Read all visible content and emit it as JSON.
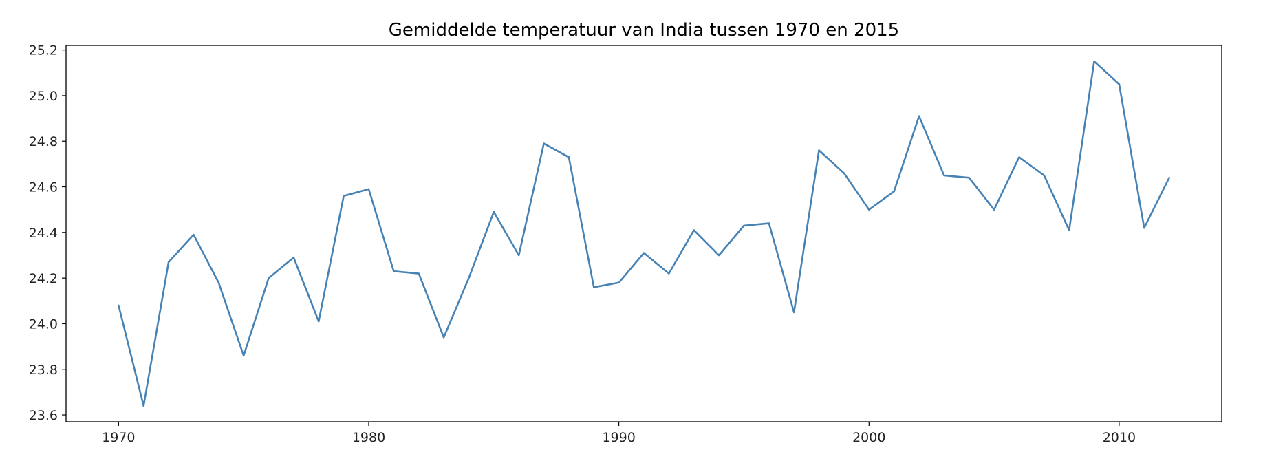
{
  "chart_data": {
    "type": "line",
    "title": "Gemiddelde temperatuur van India tussen 1970 en 2015",
    "xlabel": "",
    "ylabel": "",
    "xlim": [
      1967.9,
      2014.1
    ],
    "ylim": [
      23.57,
      25.22
    ],
    "x_ticks": [
      1970,
      1980,
      1990,
      2000,
      2010
    ],
    "x_tick_labels": [
      "1970",
      "1980",
      "1990",
      "2000",
      "2010"
    ],
    "y_ticks": [
      23.6,
      23.8,
      24.0,
      24.2,
      24.4,
      24.6,
      24.8,
      25.0,
      25.2
    ],
    "y_tick_labels": [
      "23.6",
      "23.8",
      "24.0",
      "24.2",
      "24.4",
      "24.6",
      "24.8",
      "25.0",
      "25.2"
    ],
    "grid": false,
    "legend": "none",
    "series": [
      {
        "color": "#4682b4",
        "x": [
          1970,
          1971,
          1972,
          1973,
          1974,
          1975,
          1976,
          1977,
          1978,
          1979,
          1980,
          1981,
          1982,
          1983,
          1984,
          1985,
          1986,
          1987,
          1988,
          1989,
          1990,
          1991,
          1992,
          1993,
          1994,
          1995,
          1996,
          1997,
          1998,
          1999,
          2000,
          2001,
          2002,
          2003,
          2004,
          2005,
          2006,
          2007,
          2008,
          2009,
          2010,
          2011,
          2012
        ],
        "values": [
          24.08,
          23.64,
          24.27,
          24.39,
          24.18,
          23.86,
          24.2,
          24.29,
          24.01,
          24.56,
          24.59,
          24.23,
          24.22,
          23.94,
          24.2,
          24.49,
          24.3,
          24.79,
          24.73,
          24.16,
          24.18,
          24.31,
          24.22,
          24.41,
          24.3,
          24.43,
          24.44,
          24.05,
          24.76,
          24.66,
          24.5,
          24.58,
          24.91,
          24.65,
          24.64,
          24.5,
          24.73,
          24.65,
          24.41,
          25.15,
          25.05,
          24.42,
          24.64
        ]
      }
    ]
  }
}
